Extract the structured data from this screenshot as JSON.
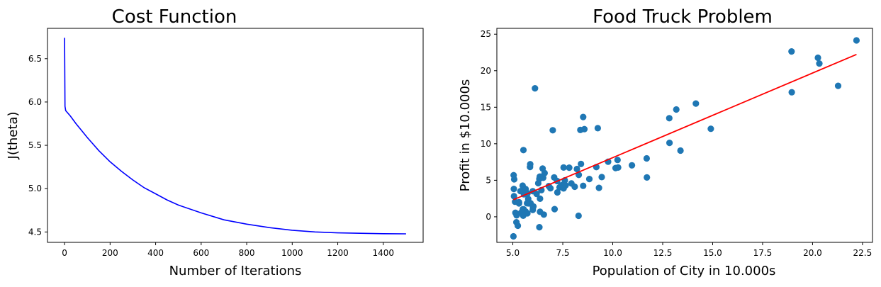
{
  "chart_data": [
    {
      "type": "line",
      "title": "Cost Function",
      "xlabel": "Number of Iterations",
      "ylabel": "J(theta)",
      "xlim": [
        -75,
        1575
      ],
      "ylim": [
        4.38,
        6.85
      ],
      "xticks": [
        0,
        200,
        400,
        600,
        800,
        1000,
        1200,
        1400
      ],
      "xtick_labels": [
        "0",
        "200",
        "400",
        "600",
        "800",
        "1000",
        "1200",
        "1400"
      ],
      "yticks": [
        4.5,
        5.0,
        5.5,
        6.0,
        6.5
      ],
      "ytick_labels": [
        "4.5",
        "5.0",
        "5.5",
        "6.0",
        "6.5"
      ],
      "grid": false,
      "series": [
        {
          "color": "#0000ff",
          "x": [
            0,
            2,
            5,
            25,
            50,
            75,
            100,
            150,
            200,
            250,
            300,
            350,
            400,
            450,
            500,
            600,
            700,
            800,
            900,
            1000,
            1100,
            1200,
            1300,
            1400,
            1500
          ],
          "y": [
            6.74,
            5.95,
            5.9,
            5.84,
            5.75,
            5.67,
            5.59,
            5.44,
            5.31,
            5.2,
            5.1,
            5.01,
            4.94,
            4.87,
            4.81,
            4.72,
            4.64,
            4.59,
            4.55,
            4.52,
            4.5,
            4.49,
            4.485,
            4.48,
            4.478
          ]
        }
      ]
    },
    {
      "type": "scatter",
      "title": "Food Truck Problem",
      "xlabel": "Population of City in 10.000s",
      "ylabel": "Profit in $10.000s",
      "xlim": [
        4.2,
        23.0
      ],
      "ylim": [
        -3.5,
        25.8
      ],
      "xticks": [
        5.0,
        7.5,
        10.0,
        12.5,
        15.0,
        17.5,
        20.0,
        22.5
      ],
      "xtick_labels": [
        "5.0",
        "7.5",
        "10.0",
        "12.5",
        "15.0",
        "17.5",
        "20.0",
        "22.5"
      ],
      "yticks": [
        0,
        5,
        10,
        15,
        20,
        25
      ],
      "ytick_labels": [
        "0",
        "5",
        "10",
        "15",
        "20",
        "25"
      ],
      "grid": false,
      "point_color": "#1f77b4",
      "points": [
        [
          6.11,
          17.59
        ],
        [
          5.53,
          9.13
        ],
        [
          8.52,
          13.66
        ],
        [
          7.0,
          11.85
        ],
        [
          5.86,
          6.82
        ],
        [
          8.38,
          11.89
        ],
        [
          7.48,
          4.35
        ],
        [
          8.58,
          12.0
        ],
        [
          6.49,
          6.6
        ],
        [
          5.05,
          3.82
        ],
        [
          5.71,
          3.25
        ],
        [
          14.16,
          15.51
        ],
        [
          5.73,
          3.16
        ],
        [
          8.41,
          7.23
        ],
        [
          5.64,
          0.72
        ],
        [
          5.38,
          3.51
        ],
        [
          6.37,
          5.3
        ],
        [
          5.13,
          0.56
        ],
        [
          6.43,
          3.65
        ],
        [
          7.07,
          5.39
        ],
        [
          6.19,
          3.14
        ],
        [
          20.27,
          21.77
        ],
        [
          5.49,
          4.26
        ],
        [
          6.33,
          5.19
        ],
        [
          5.56,
          3.08
        ],
        [
          18.95,
          22.64
        ],
        [
          12.83,
          13.5
        ],
        [
          10.96,
          7.05
        ],
        [
          13.18,
          14.69
        ],
        [
          22.2,
          24.15
        ],
        [
          5.25,
          -1.22
        ],
        [
          6.59,
          5.99
        ],
        [
          9.25,
          12.13
        ],
        [
          5.89,
          1.85
        ],
        [
          8.21,
          6.54
        ],
        [
          7.93,
          4.56
        ],
        [
          8.1,
          4.12
        ],
        [
          5.61,
          3.39
        ],
        [
          12.84,
          10.12
        ],
        [
          6.35,
          5.5
        ],
        [
          5.41,
          0.56
        ],
        [
          6.88,
          3.91
        ],
        [
          11.71,
          5.39
        ],
        [
          5.77,
          2.44
        ],
        [
          7.82,
          6.73
        ],
        [
          7.09,
          1.05
        ],
        [
          5.07,
          5.13
        ],
        [
          5.8,
          1.84
        ],
        [
          11.7,
          8.0
        ],
        [
          5.54,
          1.02
        ],
        [
          7.54,
          6.75
        ],
        [
          5.31,
          1.84
        ],
        [
          7.42,
          4.29
        ],
        [
          7.6,
          4.99
        ],
        [
          6.03,
          1.42
        ],
        [
          6.33,
          -1.42
        ],
        [
          6.36,
          2.48
        ],
        [
          6.27,
          4.6
        ],
        [
          5.64,
          3.81
        ],
        [
          9.31,
          3.96
        ],
        [
          9.45,
          5.44
        ],
        [
          8.83,
          5.17
        ],
        [
          5.18,
          -0.74
        ],
        [
          21.28,
          17.93
        ],
        [
          14.91,
          12.05
        ],
        [
          18.96,
          17.05
        ],
        [
          7.22,
          4.89
        ],
        [
          8.3,
          5.74
        ],
        [
          10.24,
          7.78
        ],
        [
          5.5,
          1.02
        ],
        [
          20.34,
          20.99
        ],
        [
          10.14,
          6.68
        ],
        [
          7.34,
          4.03
        ],
        [
          6.01,
          1.28
        ],
        [
          7.23,
          3.34
        ],
        [
          5.03,
          -2.68
        ],
        [
          6.55,
          0.3
        ],
        [
          7.54,
          3.88
        ],
        [
          5.04,
          5.7
        ],
        [
          10.27,
          6.75
        ],
        [
          5.11,
          2.06
        ],
        [
          5.73,
          0.48
        ],
        [
          5.19,
          0.2
        ],
        [
          6.36,
          0.68
        ],
        [
          9.77,
          7.54
        ],
        [
          6.52,
          5.34
        ],
        [
          8.52,
          4.24
        ],
        [
          9.18,
          6.8
        ],
        [
          6.0,
          0.93
        ],
        [
          5.52,
          0.15
        ],
        [
          5.06,
          2.82
        ],
        [
          5.71,
          1.85
        ],
        [
          7.64,
          4.3
        ],
        [
          5.87,
          7.2
        ],
        [
          5.31,
          1.99
        ],
        [
          8.29,
          0.14
        ],
        [
          13.39,
          9.06
        ],
        [
          5.44,
          0.62
        ],
        [
          6.0,
          3.5
        ],
        [
          6.8,
          4.2
        ]
      ],
      "fit_line": {
        "color": "#ff0000",
        "x": [
          5.03,
          22.2
        ],
        "y": [
          2.34,
          22.23
        ]
      }
    }
  ]
}
